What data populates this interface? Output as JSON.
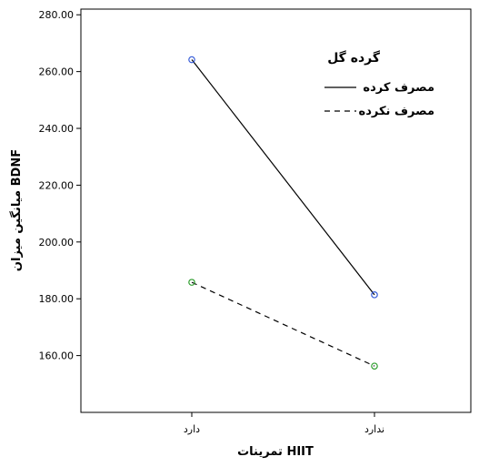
{
  "chart_data": {
    "type": "line",
    "title": "",
    "xlabel": "تمرینات HIIT",
    "ylabel": "میانگین میزان BDNF",
    "categories": [
      "دارد",
      "ندارد"
    ],
    "ylim": [
      140,
      282
    ],
    "yticks": [
      160,
      180,
      200,
      220,
      240,
      260,
      280
    ],
    "ytick_labels": [
      "160.00",
      "180.00",
      "200.00",
      "220.00",
      "240.00",
      "260.00",
      "280.00"
    ],
    "grid": false,
    "legend": {
      "title": "گرده گل",
      "placement": "top-right"
    },
    "series": [
      {
        "name": "مصرف کرده",
        "values": [
          264.2,
          181.4
        ],
        "line_style": "solid",
        "line_color": "#000000",
        "marker_color": "#3a5fd9"
      },
      {
        "name": "مصرف نکرده",
        "values": [
          185.8,
          156.3
        ],
        "line_style": "dashed",
        "line_color": "#000000",
        "marker_color": "#2e9e2e"
      }
    ]
  }
}
